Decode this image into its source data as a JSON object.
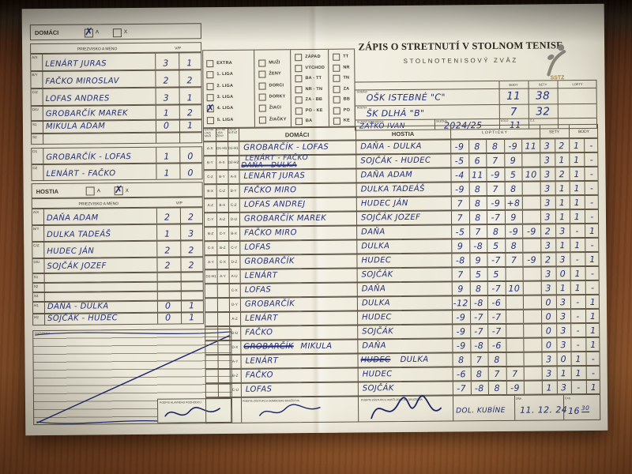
{
  "colors": {
    "pen_blue": "#242f79",
    "paper": "#edeadc",
    "wood_brown": "#7c4524",
    "print_ink": "#3a362c"
  },
  "header": {
    "title": "ZÁPIS O STRETNUTÍ V STOLNOM TENISE",
    "subtitle": "STOLNOTENISOVÝ ZVÄZ",
    "logo": "sstz-player-logo"
  },
  "summary": {
    "col_headers": [
      "BODY",
      "SETY",
      "LOPTY"
    ],
    "rows": [
      {
        "label": "DOMÁCI",
        "team": "OŠK ISTEBNÉ \"C\"",
        "body": "11",
        "sety": "38",
        "lopty": ""
      },
      {
        "label": "HOSTIA",
        "team": "ŠK DLHÁ \"B\"",
        "body": "7",
        "sety": "32",
        "lopty": ""
      }
    ],
    "referee_label": "HLAVNÝ ROZHODCA",
    "referee": "ZAŤKO IVAN",
    "season_label": "SEZÓNA",
    "season": "2024/25",
    "round_label": "KOLO",
    "round": "11",
    "cz_label": "Č.Z.",
    "cz": ""
  },
  "league": {
    "columns": [
      {
        "items": [
          "EXTRA",
          "1. LIGA",
          "2. LIGA",
          "3. LIGA",
          "4. LIGA",
          "5. LIGA"
        ],
        "checked_index": 4
      },
      {
        "items": [
          "MUŽI",
          "ŽENY",
          "DORCI",
          "DORKY",
          "ŽIACI",
          "ŽIAČKY"
        ],
        "checked_index": -1
      },
      {
        "items": [
          "ZÁPAD",
          "VÝCHOD",
          "BA - TT",
          "NR - TN",
          "ZA - BB",
          "PO - KE",
          "BA"
        ],
        "checked_index": -1
      },
      {
        "items": [
          "TT",
          "NR",
          "TN",
          "ZA",
          "BB",
          "PO",
          "KE"
        ],
        "checked_index": -1
      }
    ]
  },
  "home_box": {
    "label": "DOMÁCI",
    "opt_a": "A",
    "opt_x": "X",
    "checked": "A",
    "name_header": "PRIEZVISKO A MENO",
    "vp_header": "V/P",
    "players": [
      {
        "code": "A/X",
        "name": "LENÁRT JURAS",
        "v": "3",
        "p": "1"
      },
      {
        "code": "B/Y",
        "name": "FAČKO MIROSLAV",
        "v": "2",
        "p": "2"
      },
      {
        "code": "C/Z",
        "name": "LOFAS ANDRES",
        "v": "3",
        "p": "1"
      },
      {
        "code": "D/U",
        "name": "GROBARČÍK MAREK",
        "v": "1",
        "p": "2"
      },
      {
        "code": "S1",
        "name": "MIKULA ADAM",
        "v": "0",
        "p": "1"
      },
      {
        "code": "S2",
        "name": "",
        "v": "",
        "p": ""
      }
    ],
    "doubles": [
      {
        "code": "D1",
        "name": "GROBARČÍK - LOFAS",
        "v": "1",
        "p": "0"
      },
      {
        "code": "D2",
        "name": "LENÁRT - FAČKO",
        "v": "1",
        "p": "0"
      }
    ]
  },
  "guest_box": {
    "label": "HOSTIA",
    "opt_a": "A",
    "opt_x": "X",
    "checked": "X",
    "name_header": "PRIEZVISKO A MENO",
    "vp_header": "V/P",
    "players": [
      {
        "code": "A/X",
        "name": "DAŇA ADAM",
        "v": "2",
        "p": "2"
      },
      {
        "code": "B/Y",
        "name": "DULKA TADEÁŠ",
        "v": "1",
        "p": "3"
      },
      {
        "code": "C/Z",
        "name": "HUDEC JÁN",
        "v": "2",
        "p": "2"
      },
      {
        "code": "D/U",
        "name": "SOJČÁK JOZEF",
        "v": "2",
        "p": "2"
      },
      {
        "code": "S1",
        "name": "",
        "v": "",
        "p": ""
      },
      {
        "code": "S2",
        "name": "",
        "v": "",
        "p": ""
      },
      {
        "code": "S3",
        "name": "",
        "v": "",
        "p": ""
      }
    ],
    "doubles": [
      {
        "code": "H1",
        "name": "DAŇA - DULKA",
        "v": "0",
        "p": "1"
      },
      {
        "code": "H2",
        "name": "SOJČÁK - HUDEC",
        "v": "0",
        "p": "1"
      }
    ]
  },
  "grid": {
    "code_headers": [
      "EXTRA LIGA MUŽI",
      "EXTRA LIGA ŽENY",
      "OSTATNÉ SÚŤAŽE"
    ],
    "headers": {
      "home": "DOMÁCI",
      "guest": "HOSTIA",
      "balls": "LOPTIČKY",
      "sets": "SETY",
      "points": "BODY"
    },
    "rows": [
      {
        "codes": [
          "A-X",
          "D1-H1",
          "D1-H1"
        ],
        "home": "GROBARČÍK - LOFAS",
        "guest": "DAŇA - DULKA",
        "balls": [
          "-9",
          "8",
          "8",
          "-9",
          "11"
        ],
        "sets": [
          "3",
          "2"
        ],
        "points": [
          "1",
          "-"
        ]
      },
      {
        "codes": [
          "B-Y",
          "A-X",
          "D2-H2"
        ],
        "home": "LENÁRT - FAČKO",
        "home_struck": "DAŇA - DULKA",
        "stack": true,
        "guest": "SOJČÁK - HUDEC",
        "balls": [
          "-5",
          "6",
          "7",
          "9",
          ""
        ],
        "sets": [
          "3",
          "1"
        ],
        "points": [
          "1",
          "-"
        ]
      },
      {
        "codes": [
          "C-Z",
          "B-Y",
          "A-X"
        ],
        "home": "LENÁRT JURAS",
        "guest": "DAŇA ADAM",
        "balls": [
          "-4",
          "11",
          "-9",
          "5",
          "10"
        ],
        "sets": [
          "3",
          "2"
        ],
        "points": [
          "1",
          "-"
        ]
      },
      {
        "codes": [
          "B-X",
          "C-Z",
          "B-Y"
        ],
        "home": "FAČKO MIRO",
        "guest": "DULKA TADEÁŠ",
        "balls": [
          "-9",
          "8",
          "7",
          "8",
          ""
        ],
        "sets": [
          "3",
          "1"
        ],
        "points": [
          "1",
          "-"
        ]
      },
      {
        "codes": [
          "A-Z",
          "B-X",
          "C-Z"
        ],
        "home": "LOFAS ANDREJ",
        "guest": "HUDEC JÁN",
        "balls": [
          "7",
          "8",
          "-9",
          "+8",
          ""
        ],
        "sets": [
          "3",
          "1"
        ],
        "points": [
          "1",
          "-"
        ]
      },
      {
        "codes": [
          "C-Y",
          "A-Z",
          "D-U"
        ],
        "home": "GROBARČÍK MAREK",
        "guest": "SOJČÁK JOZEF",
        "balls": [
          "7",
          "8",
          "-7",
          "9",
          ""
        ],
        "sets": [
          "3",
          "1"
        ],
        "points": [
          "1",
          "-"
        ]
      },
      {
        "codes": [
          "B-Z",
          "C-Y",
          "B-X"
        ],
        "home": "FAČKO MIRO",
        "guest": "DAŇA",
        "balls": [
          "-5",
          "7",
          "8",
          "-9",
          "-9"
        ],
        "sets": [
          "2",
          "3"
        ],
        "points": [
          "-",
          "1"
        ]
      },
      {
        "codes": [
          "C-X",
          "B-Z",
          "C-Y"
        ],
        "home": "LOFAS",
        "guest": "DULKA",
        "balls": [
          "9",
          "-8",
          "5",
          "8",
          ""
        ],
        "sets": [
          "3",
          "1"
        ],
        "points": [
          "1",
          "-"
        ]
      },
      {
        "codes": [
          "A-Y",
          "C-X",
          "D-Z"
        ],
        "home": "GROBARČÍK",
        "guest": "HUDEC",
        "balls": [
          "-8",
          "9",
          "-7",
          "7",
          "-9"
        ],
        "sets": [
          "2",
          "3"
        ],
        "points": [
          "-",
          "1"
        ]
      },
      {
        "codes": [
          "D1-H1",
          "A-Y",
          "A-U"
        ],
        "home": "LENÁRT",
        "guest": "SOJČÁK",
        "balls": [
          "7",
          "5",
          "5",
          "",
          ""
        ],
        "sets": [
          "3",
          "0"
        ],
        "points": [
          "1",
          "-"
        ]
      },
      {
        "codes": [
          "",
          "",
          "C-X"
        ],
        "home": "LOFAS",
        "guest": "DAŇA",
        "balls": [
          "9",
          "8",
          "-7",
          "10",
          ""
        ],
        "sets": [
          "3",
          "1"
        ],
        "points": [
          "1",
          "-"
        ]
      },
      {
        "codes": [
          "",
          "",
          "D-Y"
        ],
        "home": "GROBARČÍK",
        "guest": "DULKA",
        "balls": [
          "-12",
          "-8",
          "-6",
          "",
          ""
        ],
        "sets": [
          "0",
          "3"
        ],
        "points": [
          "-",
          "1"
        ]
      },
      {
        "codes": [
          "",
          "",
          "A-Z"
        ],
        "home": "LENÁRT",
        "guest": "HUDEC",
        "balls": [
          "-9",
          "-7",
          "-7",
          "",
          ""
        ],
        "sets": [
          "0",
          "3"
        ],
        "points": [
          "-",
          "1"
        ]
      },
      {
        "codes": [
          "",
          "",
          "B-U"
        ],
        "home": "FAČKO",
        "guest": "SOJČÁK",
        "balls": [
          "-9",
          "-7",
          "-7",
          "",
          ""
        ],
        "sets": [
          "0",
          "3"
        ],
        "points": [
          "-",
          "1"
        ]
      },
      {
        "codes": [
          "",
          "",
          "D-X"
        ],
        "home": "MIKULA",
        "home_struck": "GROBARČÍK",
        "guest": "DAŇA",
        "balls": [
          "-9",
          "-8",
          "-6",
          "",
          ""
        ],
        "sets": [
          "0",
          "3"
        ],
        "points": [
          "-",
          "1"
        ]
      },
      {
        "codes": [
          "",
          "",
          "A-Y"
        ],
        "home": "LENÁRT",
        "guest": "DULKA",
        "guest_struck": "HUDEC",
        "balls": [
          "8",
          "7",
          "8",
          "",
          ""
        ],
        "sets": [
          "3",
          "0"
        ],
        "points": [
          "1",
          "-"
        ]
      },
      {
        "codes": [
          "",
          "",
          "B-Z"
        ],
        "home": "FAČKO",
        "guest": "HUDEC",
        "balls": [
          "-6",
          "8",
          "7",
          "7",
          ""
        ],
        "sets": [
          "3",
          "1"
        ],
        "points": [
          "1",
          "-"
        ]
      },
      {
        "codes": [
          "",
          "",
          "C-U"
        ],
        "home": "LOFAS",
        "guest": "SOJČÁK",
        "balls": [
          "-7",
          "-8",
          "8",
          "-9",
          ""
        ],
        "sets": [
          "1",
          "3"
        ],
        "points": [
          "-",
          "1"
        ]
      }
    ]
  },
  "signoff": {
    "notes_label": "POZNÁMKY",
    "home_sign_label": "PODPIS ZÁSTUPCU DOMÁCEHO DRUŽSTVA",
    "guest_sign_label": "PODPIS ZÁSTUPCU HOSŤUJÚCEHO DRUŽSTVA",
    "referee_sign_label": "PODPIS HLAVNÉHO ROZHODCU",
    "place": "DOL. KUBÍNE",
    "date_label": "DŇA",
    "date": "11. 12. 24",
    "time_label": "ČAS",
    "time": "16",
    "time_min": "30"
  }
}
